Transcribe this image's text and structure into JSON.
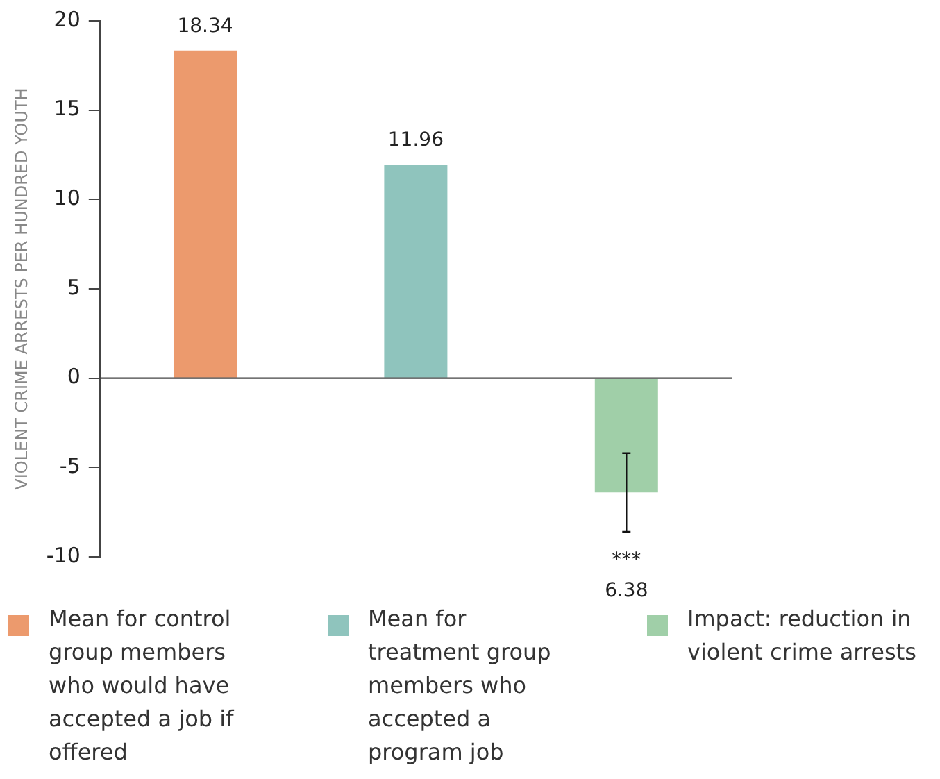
{
  "chart_data": {
    "type": "bar",
    "ylabel": "VIOLENT CRIME ARRESTS PER HUNDRED YOUTH",
    "categories": [
      null,
      null,
      null
    ],
    "series": [
      {
        "name": "Mean for control group members who would have accepted a job if offered",
        "color": "#ec9a6d",
        "values": [
          18.34,
          null,
          null
        ],
        "value_labels": [
          "18.34",
          null,
          null
        ]
      },
      {
        "name": "Mean for treatment group members who accepted a program job",
        "color": "#8fc4bd",
        "values": [
          null,
          11.96,
          null
        ],
        "value_labels": [
          null,
          "11.96",
          null
        ]
      },
      {
        "name": "Impact: reduction in violent crime arrests",
        "color": "#a0cfa8",
        "values": [
          null,
          null,
          -6.4
        ],
        "errors": [
          null,
          null,
          2.2
        ]
      }
    ],
    "annotations": [
      "***",
      "6.38"
    ],
    "ref_lines": [
      {
        "axis": "y",
        "value": 0,
        "color": "#444444"
      }
    ],
    "ylim": [
      -10,
      20
    ],
    "yticks": [
      -10,
      -5,
      0,
      5,
      10,
      15,
      20
    ],
    "grid": false,
    "legend": "bottom",
    "tick_labels": "y"
  }
}
